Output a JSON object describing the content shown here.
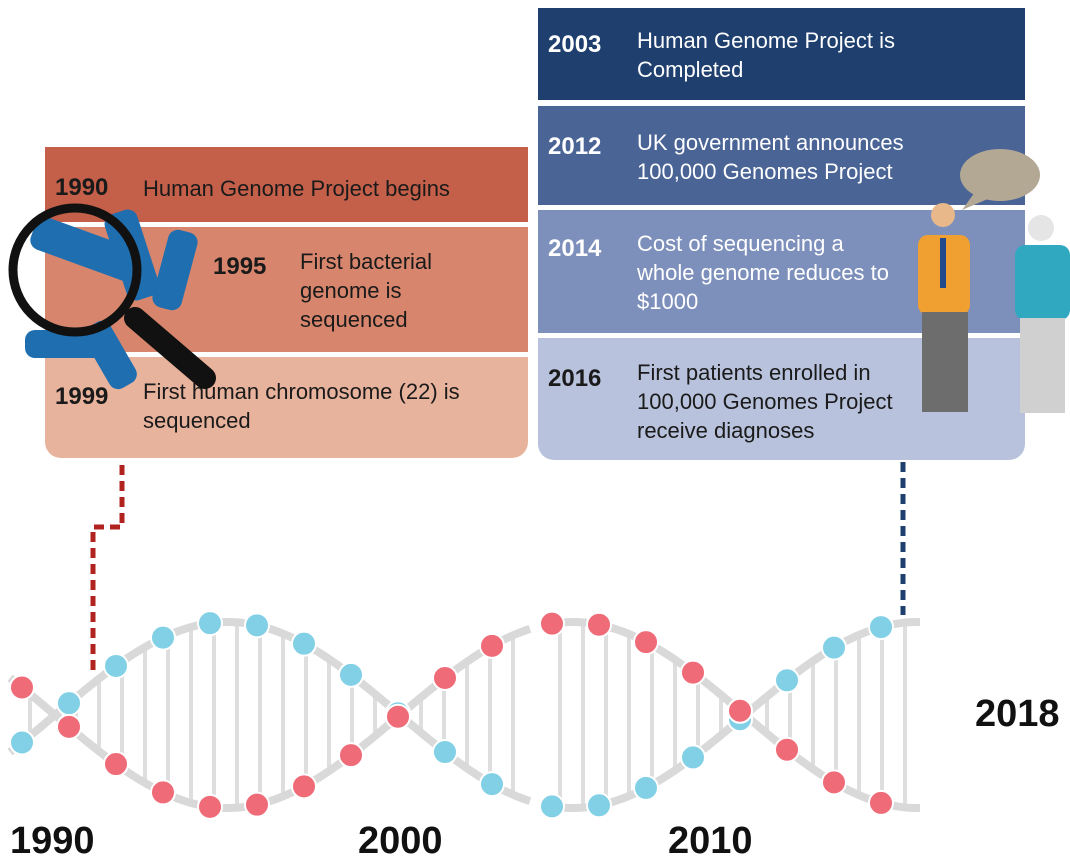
{
  "left_events": [
    {
      "year": "1990",
      "text": "Human Genome Project begins"
    },
    {
      "year": "1995",
      "text": "First bacterial genome is sequenced"
    },
    {
      "year": "1999",
      "text": "First human chromosome (22) is sequenced"
    }
  ],
  "right_events": [
    {
      "year": "2003",
      "text": "Human Genome Project is Completed"
    },
    {
      "year": "2012",
      "text": "UK government announces 100,000 Genomes Project"
    },
    {
      "year": "2014",
      "text": "Cost of sequencing a whole genome reduces to $1000"
    },
    {
      "year": "2016",
      "text": "First patients enrolled in 100,000 Genomes Project receive diagnoses"
    }
  ],
  "axis_labels": [
    "1990",
    "2000",
    "2010",
    "2018"
  ]
}
